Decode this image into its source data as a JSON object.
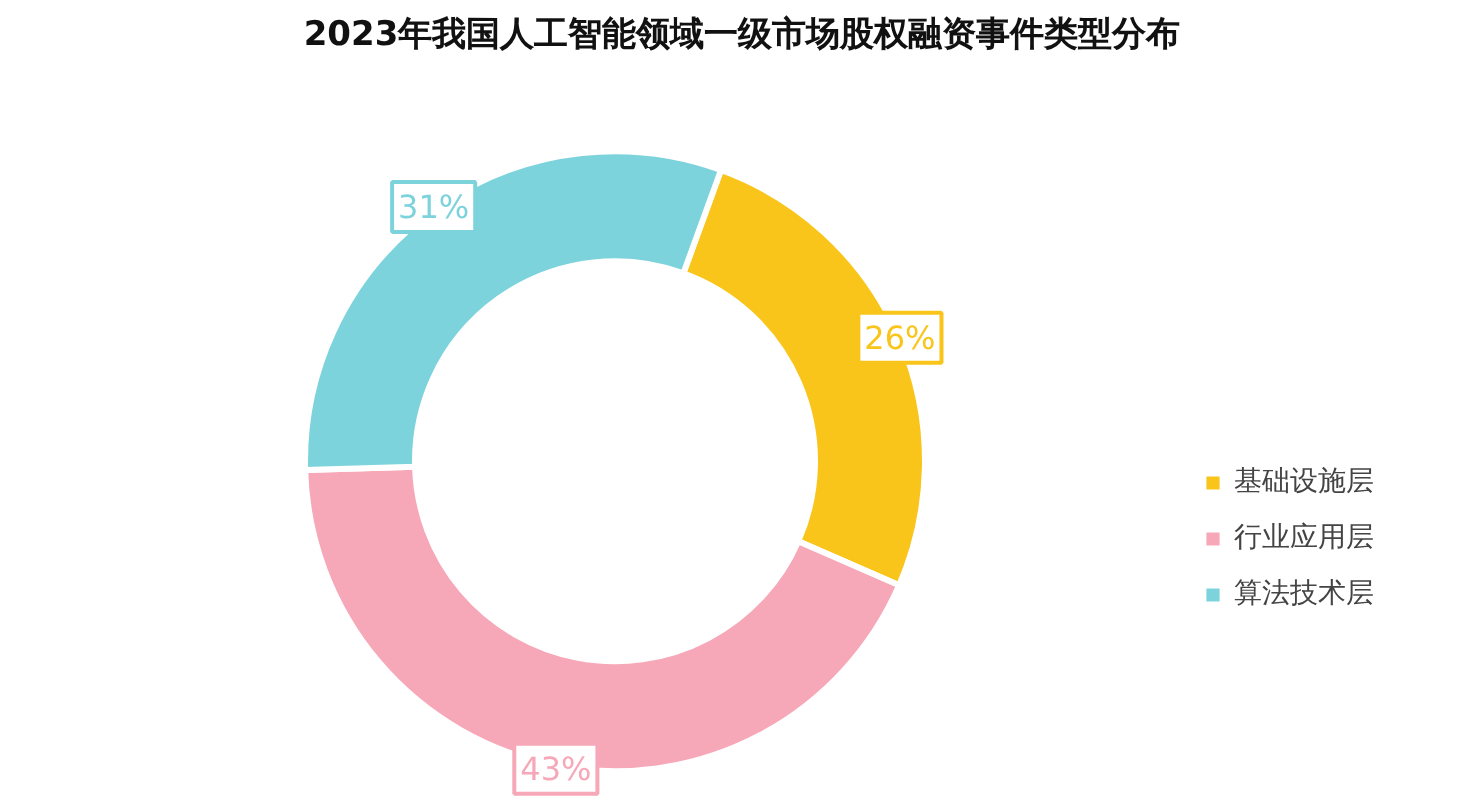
{
  "chart_data": {
    "type": "donut",
    "title": "2023年我国人工智能领域一级市场股权融资事件类型分布",
    "categories": [
      "基础设施层",
      "行业应用层",
      "算法技术层"
    ],
    "values": [
      26,
      43,
      31
    ],
    "colors": [
      "#f9c51b",
      "#f7a8b8",
      "#7dd3dc"
    ],
    "value_labels": [
      "26%",
      "43%",
      "31%"
    ],
    "legend": "right"
  }
}
